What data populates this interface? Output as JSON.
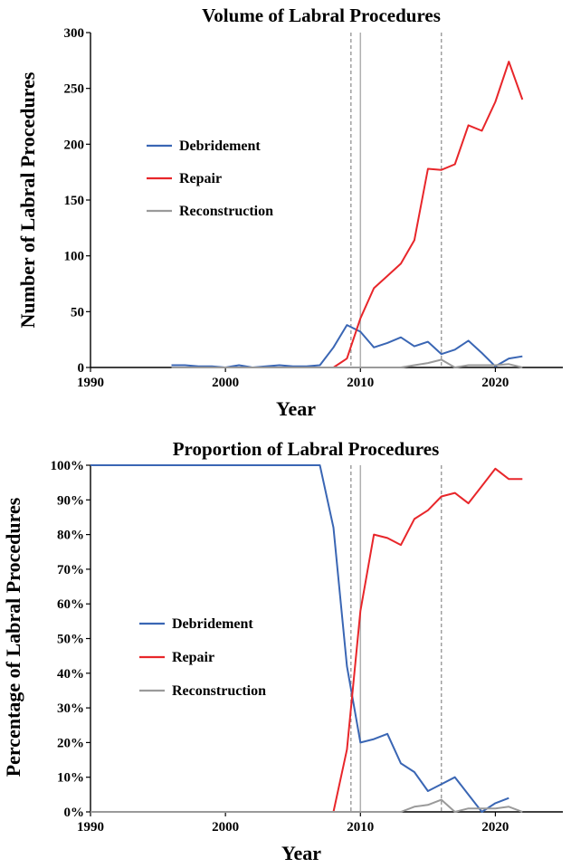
{
  "chart_data": [
    {
      "id": "volume",
      "type": "line",
      "title": "Volume of Labral Procedures",
      "xlabel": "Year",
      "ylabel": "Number of Labral Procedures",
      "xlim": [
        1990,
        2025
      ],
      "ylim": [
        0,
        300
      ],
      "xticks": [
        1990,
        2000,
        2010,
        2020
      ],
      "xtick_labels": [
        "1990",
        "2000",
        "2010",
        "2020"
      ],
      "yticks": [
        0,
        50,
        100,
        150,
        200,
        250,
        300
      ],
      "ytick_labels": [
        "0",
        "50",
        "100",
        "150",
        "200",
        "250",
        "300"
      ],
      "reference_lines": [
        {
          "x": 2009.3,
          "style": "dashed"
        },
        {
          "x": 2010.0,
          "style": "solid"
        },
        {
          "x": 2016.0,
          "style": "dashed"
        }
      ],
      "legend_position": "left-middle",
      "series": [
        {
          "name": "Debridement",
          "color": "#3a66b4",
          "x": [
            1996,
            1997,
            1998,
            1999,
            2000,
            2001,
            2002,
            2003,
            2004,
            2005,
            2006,
            2007,
            2008,
            2009,
            2010,
            2011,
            2012,
            2013,
            2014,
            2015,
            2016,
            2017,
            2018,
            2019,
            2020,
            2021,
            2022
          ],
          "y": [
            2,
            2,
            1,
            1,
            0,
            2,
            0,
            1,
            2,
            1,
            1,
            2,
            18,
            38,
            32,
            18,
            22,
            27,
            19,
            23,
            12,
            16,
            24,
            13,
            1,
            8,
            10
          ]
        },
        {
          "name": "Repair",
          "color": "#e8262a",
          "x": [
            2008,
            2009,
            2010,
            2011,
            2012,
            2013,
            2014,
            2015,
            2016,
            2017,
            2018,
            2019,
            2020,
            2021,
            2022
          ],
          "y": [
            0,
            8,
            44,
            71,
            82,
            93,
            114,
            178,
            177,
            182,
            217,
            212,
            238,
            274,
            240
          ]
        },
        {
          "name": "Reconstruction",
          "color": "#9a9a9a",
          "x": [
            1996,
            2000,
            2005,
            2010,
            2013,
            2014,
            2015,
            2016,
            2017,
            2018,
            2019,
            2020,
            2021,
            2022
          ],
          "y": [
            0,
            0,
            0,
            0,
            0,
            2,
            4,
            7,
            0,
            2,
            2,
            2,
            3,
            0
          ]
        }
      ]
    },
    {
      "id": "proportion",
      "type": "line",
      "title": "Proportion of Labral Procedures",
      "xlabel": "Year",
      "ylabel": "Percentage of Labral Procedures",
      "xlim": [
        1990,
        2025
      ],
      "ylim": [
        0,
        100
      ],
      "xticks": [
        1990,
        2000,
        2010,
        2020
      ],
      "xtick_labels": [
        "1990",
        "2000",
        "2010",
        "2020"
      ],
      "yticks": [
        0,
        10,
        20,
        30,
        40,
        50,
        60,
        70,
        80,
        90,
        100
      ],
      "ytick_labels": [
        "0%",
        "10%",
        "20%",
        "30%",
        "40%",
        "50%",
        "60%",
        "70%",
        "80%",
        "90%",
        "100%"
      ],
      "reference_lines": [
        {
          "x": 2009.3,
          "style": "dashed"
        },
        {
          "x": 2010.0,
          "style": "solid"
        },
        {
          "x": 2016.0,
          "style": "dashed"
        }
      ],
      "legend_position": "center-left",
      "series": [
        {
          "name": "Debridement",
          "color": "#3a66b4",
          "x": [
            1990,
            2007,
            2008,
            2009,
            2010,
            2011,
            2012,
            2013,
            2014,
            2015,
            2016,
            2017,
            2018,
            2019,
            2020,
            2021
          ],
          "y": [
            100,
            100,
            82,
            42,
            20,
            21,
            22.5,
            14,
            11.5,
            6,
            8,
            10,
            5,
            0,
            2.5,
            4
          ]
        },
        {
          "name": "Repair",
          "color": "#e8262a",
          "x": [
            1990,
            2008,
            2009,
            2010,
            2011,
            2012,
            2013,
            2014,
            2015,
            2016,
            2017,
            2018,
            2019,
            2020,
            2021,
            2022
          ],
          "y": [
            0,
            0,
            18,
            58,
            80,
            79,
            77,
            84.5,
            87,
            91,
            92,
            89,
            94,
            99,
            96,
            96
          ]
        },
        {
          "name": "Reconstruction",
          "color": "#9a9a9a",
          "x": [
            1990,
            2012,
            2013,
            2014,
            2015,
            2016,
            2017,
            2018,
            2019,
            2020,
            2021,
            2022
          ],
          "y": [
            0,
            0,
            0,
            1.5,
            2,
            3.5,
            0,
            1,
            1,
            1,
            1.5,
            0
          ]
        }
      ]
    }
  ]
}
